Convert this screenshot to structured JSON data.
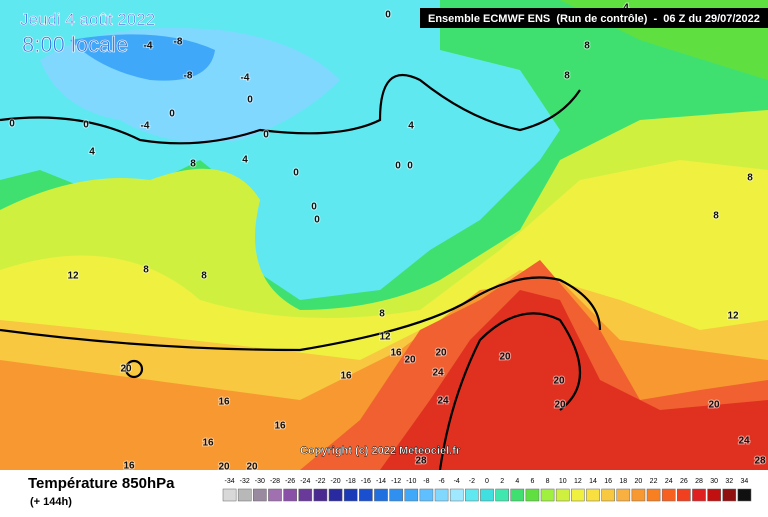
{
  "title": "Jeudi 4 août 2022",
  "subtitle": "8:00 locale",
  "header": "Ensemble ECMWF ENS  (Run de contrôle)  -  06 Z du 29/07/2022",
  "copyright": "Copyright (c) 2022 Meteociel.fr",
  "variable": "Température 850hPa",
  "lead_time": "(+ 144h)",
  "legend": {
    "values": [
      -34,
      -32,
      -30,
      -28,
      -26,
      -24,
      -22,
      -20,
      -18,
      -16,
      -14,
      -12,
      -10,
      -8,
      -6,
      -4,
      -2,
      0,
      2,
      4,
      6,
      8,
      10,
      12,
      14,
      16,
      18,
      20,
      22,
      24,
      26,
      28,
      30,
      32,
      34
    ],
    "colors": [
      "#d8d8d8",
      "#b8b8b8",
      "#9a8aa0",
      "#a070b0",
      "#8a50a8",
      "#6a3a9a",
      "#4a2a90",
      "#2a2aa0",
      "#1a3ab8",
      "#1a50d0",
      "#2070e0",
      "#3090f0",
      "#40a8f8",
      "#60c0ff",
      "#80d8ff",
      "#a0e8ff",
      "#60e8f0",
      "#40e0e0",
      "#40e8b0",
      "#40e070",
      "#60e040",
      "#a0f040",
      "#d0f040",
      "#f0f040",
      "#f8e040",
      "#f8c840",
      "#f8b040",
      "#f89830",
      "#f88020",
      "#f86020",
      "#f04020",
      "#e02020",
      "#c01010",
      "#901010",
      "#101010"
    ]
  },
  "contour_labels": [
    -8,
    -8,
    -4,
    -4,
    -4,
    0,
    0,
    0,
    0,
    0,
    0,
    0,
    0,
    0,
    0,
    0,
    4,
    4,
    4,
    4,
    8,
    8,
    8,
    8,
    8,
    8,
    8,
    8,
    12,
    12,
    12,
    16,
    16,
    16,
    16,
    16,
    16,
    20,
    20,
    20,
    20,
    20,
    20,
    20,
    20,
    20,
    24,
    24,
    24,
    28,
    28
  ]
}
